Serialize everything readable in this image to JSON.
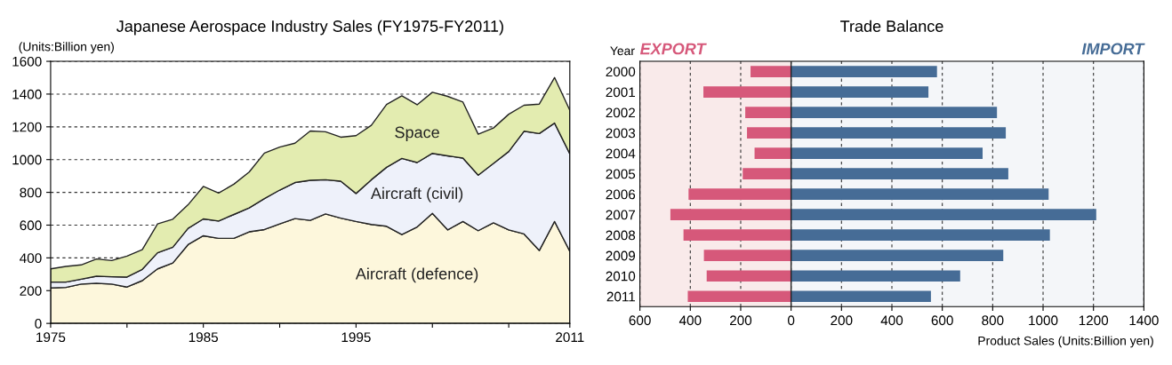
{
  "chart_data": [
    {
      "type": "area",
      "stacked": true,
      "title": "Japanese Aerospace Industry Sales (FY1975-FY2011)",
      "ylabel": "(Units:Billion yen)",
      "categories": [
        "1975",
        null,
        null,
        null,
        null,
        null,
        null,
        null,
        null,
        null,
        "1985",
        null,
        null,
        null,
        null,
        null,
        null,
        null,
        null,
        null,
        "1995",
        null,
        null,
        null,
        null,
        null,
        null,
        null,
        null,
        null,
        null,
        null,
        null,
        null,
        "2011"
      ],
      "series": [
        {
          "name": "Aircraft (defence)",
          "color": "#fdf7dc",
          "values": [
            216,
            220,
            240,
            245,
            240,
            222,
            261,
            333,
            369,
            481,
            535,
            519,
            519,
            559,
            573,
            607,
            640,
            629,
            668,
            643,
            622,
            604,
            593,
            542,
            589,
            672,
            571,
            622,
            566,
            614,
            571,
            546,
            445,
            622,
            441
          ]
        },
        {
          "name": "Aircraft (civil)",
          "color": "#eef1fa",
          "values": [
            36,
            32,
            30,
            43,
            45,
            61,
            69,
            98,
            96,
            99,
            103,
            106,
            146,
            146,
            189,
            207,
            220,
            245,
            209,
            225,
            171,
            273,
            360,
            465,
            393,
            366,
            452,
            387,
            339,
            363,
            478,
            627,
            714,
            601,
            595
          ]
        },
        {
          "name": "Space",
          "color": "#e3ecb0",
          "values": [
            81,
            96,
            87,
            105,
            99,
            128,
            120,
            176,
            171,
            144,
            198,
            171,
            185,
            219,
            278,
            262,
            240,
            301,
            293,
            269,
            353,
            332,
            384,
            382,
            353,
            373,
            363,
            342,
            250,
            216,
            228,
            159,
            180,
            278,
            265
          ]
        }
      ],
      "ylim": [
        0,
        1600
      ],
      "yticks": [
        0,
        200,
        400,
        600,
        800,
        1000,
        1200,
        1400,
        1600
      ],
      "grid": "y"
    },
    {
      "type": "bar",
      "orientation": "horizontal",
      "stacked": true,
      "title": "Trade Balance",
      "ylabel": "Year",
      "xlabel": "Product Sales (Units:Billion yen)",
      "categories": [
        "2000",
        "2001",
        "2002",
        "2003",
        "2004",
        "2005",
        "2006",
        "2007",
        "2008",
        "2009",
        "2010",
        "2011"
      ],
      "series": [
        {
          "name": "EXPORT",
          "color": "#d6587a",
          "values": [
            -161,
            -348,
            -182,
            -175,
            -145,
            -192,
            -407,
            -479,
            -427,
            -346,
            -335,
            -410
          ]
        },
        {
          "name": "IMPORT",
          "color": "#466c96",
          "values": [
            579,
            545,
            817,
            852,
            760,
            862,
            1022,
            1211,
            1027,
            842,
            671,
            555
          ]
        }
      ],
      "xlim": [
        -600,
        1400
      ],
      "xticks": [
        {
          "value": -600,
          "label": "600"
        },
        {
          "value": -400,
          "label": "400"
        },
        {
          "value": -200,
          "label": "200"
        },
        0,
        200,
        400,
        600,
        800,
        1000,
        1200,
        1400
      ],
      "bands": [
        {
          "axis": "x",
          "from": -600,
          "to": 0,
          "color": "#f9eaea"
        },
        {
          "axis": "x",
          "from": 0,
          "to": 1400,
          "color": "#f4f6f9"
        }
      ],
      "grid": "x"
    }
  ]
}
